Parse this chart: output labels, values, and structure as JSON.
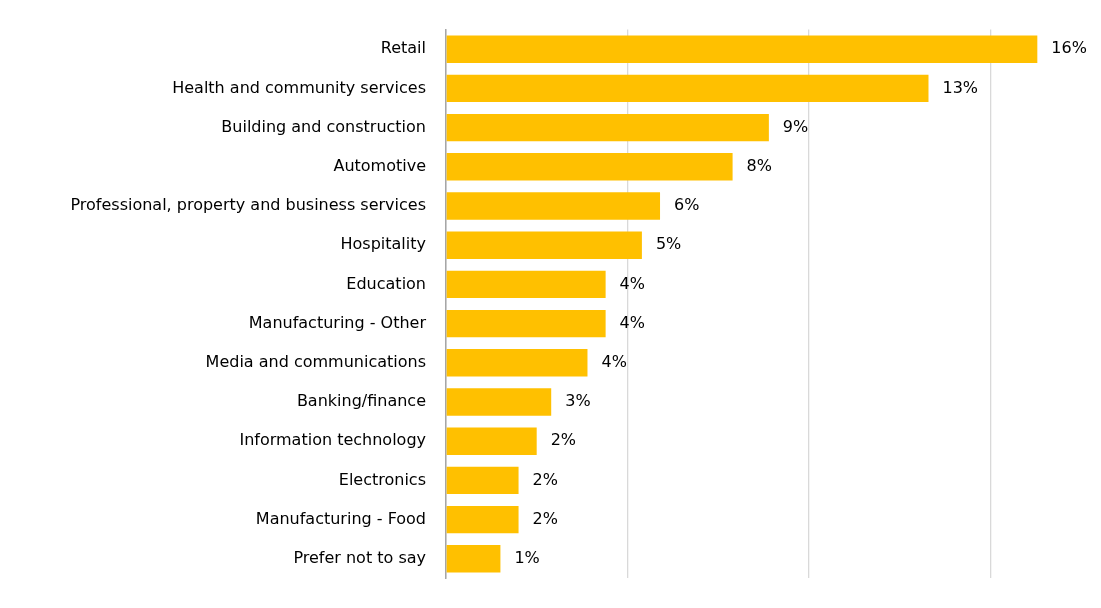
{
  "chart_data": {
    "type": "bar",
    "orientation": "horizontal",
    "categories": [
      "Retail",
      "Health and community services",
      "Building and construction",
      "Automotive",
      "Professional, property and business services",
      "Hospitality",
      "Education",
      "Manufacturing - Other",
      "Media and communications",
      "Banking/finance",
      "Information technology",
      "Electronics",
      "Manufacturing - Food",
      "Prefer not to say"
    ],
    "values": [
      16.3,
      13.3,
      8.9,
      7.9,
      5.9,
      5.4,
      4.4,
      4.4,
      3.9,
      2.9,
      2.5,
      2.0,
      2.0,
      1.5
    ],
    "value_labels": [
      "16%",
      "13%",
      "9%",
      "8%",
      "6%",
      "5%",
      "4%",
      "4%",
      "4%",
      "3%",
      "2%",
      "2%",
      "2%",
      "1%"
    ],
    "color": "#ffc000",
    "xticks": [
      {
        "value": 0,
        "label": null
      },
      {
        "value": 5,
        "label": null
      },
      {
        "value": 10,
        "label": null
      },
      {
        "value": 15,
        "label": null
      }
    ],
    "grid": "x",
    "tick_labels": "y",
    "legend": false
  }
}
